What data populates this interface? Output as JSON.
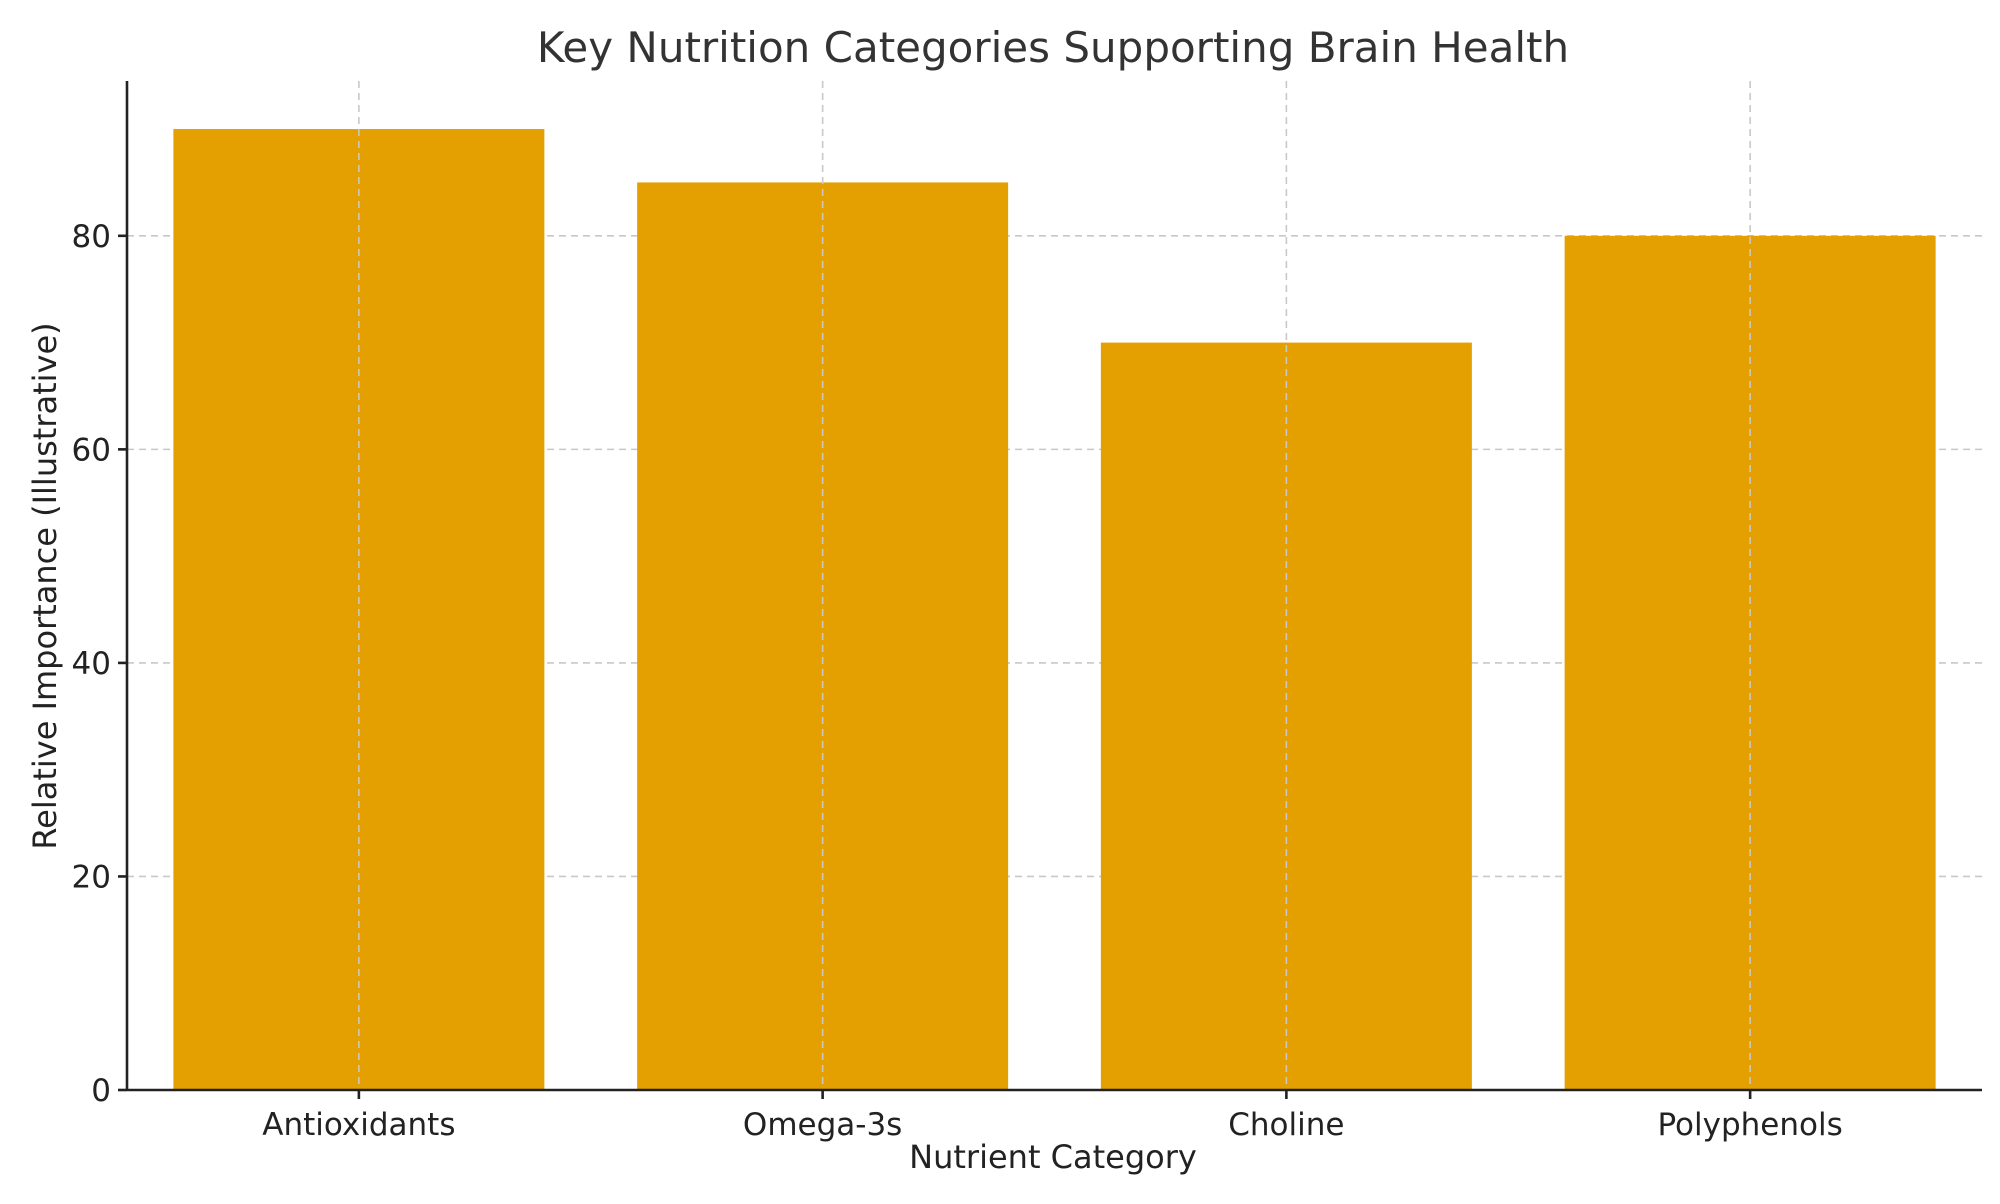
{
  "chart_data": {
    "type": "bar",
    "title": "Key Nutrition Categories Supporting Brain Health",
    "xlabel": "Nutrient Category",
    "ylabel": "Relative Importance (Illustrative)",
    "categories": [
      "Antioxidants",
      "Omega-3s",
      "Choline",
      "Polyphenols"
    ],
    "values": [
      90,
      85,
      70,
      80
    ],
    "ylim": [
      0,
      94.5
    ],
    "yticks": [
      0,
      20,
      40,
      60,
      80
    ],
    "grid": true,
    "bar_color": "#e3a000"
  }
}
